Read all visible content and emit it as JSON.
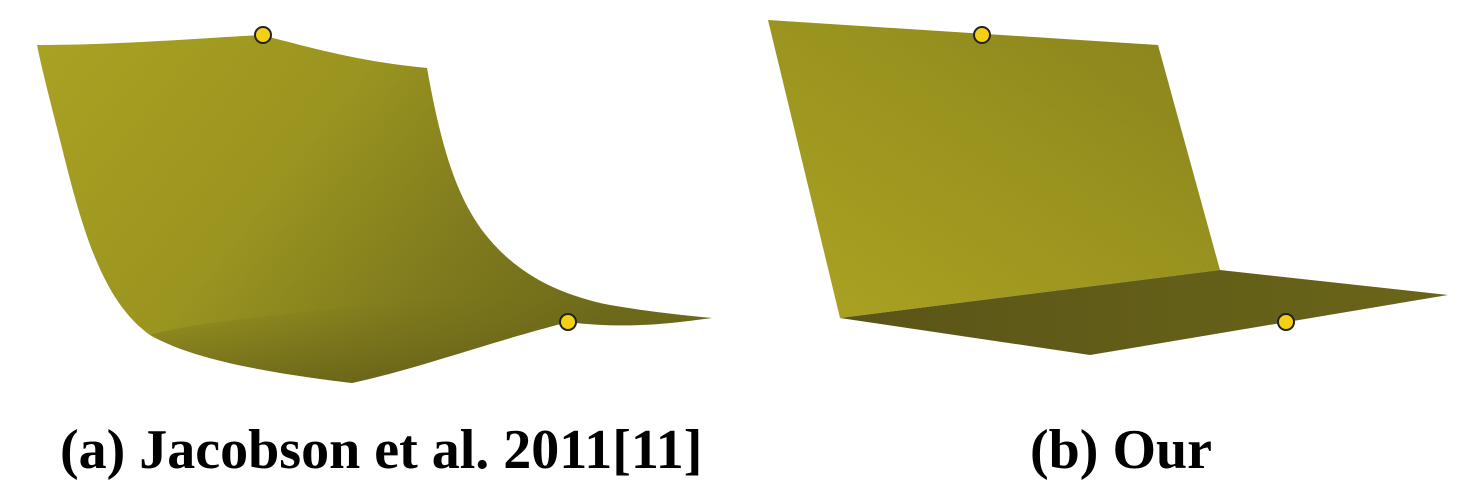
{
  "panels": [
    {
      "caption": "(a) Jacobson et al. 2011[11]"
    },
    {
      "caption": "(b) Our"
    }
  ],
  "colors": {
    "surface_light": "#aba322",
    "surface_mid": "#8d871f",
    "surface_dark": "#5f5a18",
    "handle_fill": "#f3cf16",
    "handle_stroke": "#222222",
    "background": "#ffffff"
  }
}
